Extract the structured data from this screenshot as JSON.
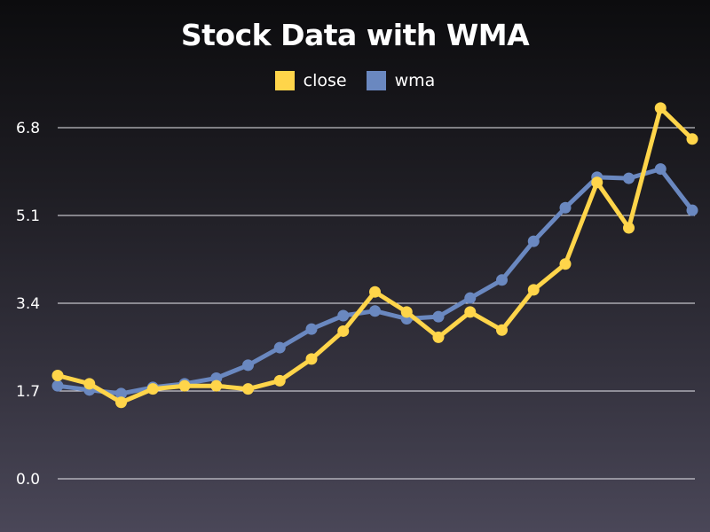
{
  "chart_data": {
    "type": "line",
    "title": "Stock Data with WMA",
    "xlabel": "",
    "ylabel": "",
    "ylim": [
      0,
      6.8
    ],
    "yticks": [
      "6.8",
      "5.1",
      "3.4",
      "1.7",
      "0.0"
    ],
    "ytick_values": [
      6.8,
      5.1,
      3.4,
      1.7,
      0.0
    ],
    "grid": true,
    "legend_position": "top-center",
    "series": [
      {
        "name": "close",
        "color": "#ffd54a",
        "values": [
          2.0,
          1.84,
          1.48,
          1.74,
          1.8,
          1.8,
          1.74,
          1.9,
          2.32,
          2.86,
          3.62,
          3.23,
          2.74,
          3.23,
          2.88,
          3.66,
          4.16,
          5.74,
          4.86,
          7.18,
          6.58
        ]
      },
      {
        "name": "wma",
        "color": "#6a88c0",
        "values": [
          1.8,
          1.72,
          1.65,
          1.77,
          1.84,
          1.95,
          2.2,
          2.54,
          2.9,
          3.16,
          3.25,
          3.1,
          3.14,
          3.5,
          3.85,
          4.6,
          5.25,
          5.84,
          5.82,
          6.0,
          5.2
        ]
      }
    ]
  }
}
